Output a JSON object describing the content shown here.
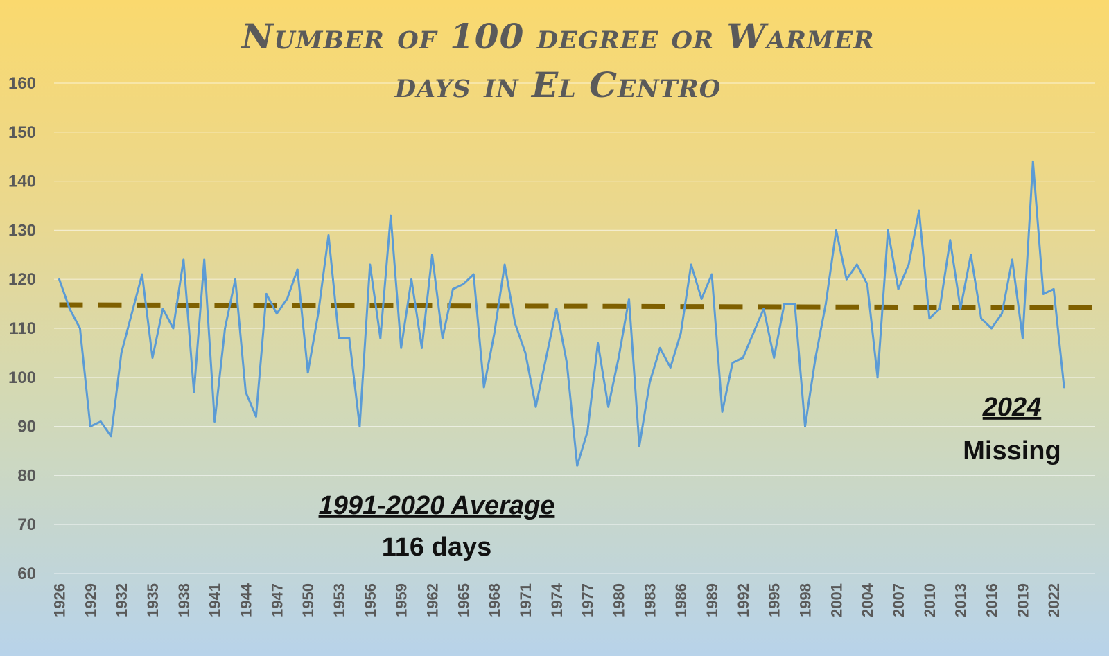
{
  "chart_data": {
    "type": "line",
    "title": [
      "Number of 100 degree or Warmer",
      "days in El Centro"
    ],
    "xlabel": "",
    "ylabel": "",
    "ylim": [
      60,
      160
    ],
    "yticks": [
      60,
      70,
      80,
      90,
      100,
      110,
      120,
      130,
      140,
      150,
      160
    ],
    "grid": true,
    "x": [
      1926,
      1927,
      1928,
      1929,
      1930,
      1931,
      1932,
      1933,
      1934,
      1935,
      1936,
      1937,
      1938,
      1939,
      1940,
      1941,
      1942,
      1943,
      1944,
      1945,
      1946,
      1947,
      1948,
      1949,
      1950,
      1951,
      1952,
      1953,
      1954,
      1955,
      1956,
      1957,
      1958,
      1959,
      1960,
      1961,
      1962,
      1963,
      1964,
      1965,
      1966,
      1967,
      1968,
      1969,
      1970,
      1971,
      1972,
      1973,
      1974,
      1975,
      1976,
      1977,
      1978,
      1979,
      1980,
      1981,
      1982,
      1983,
      1984,
      1985,
      1986,
      1987,
      1988,
      1989,
      1990,
      1991,
      1992,
      1993,
      1994,
      1995,
      1996,
      1997,
      1998,
      1999,
      2000,
      2001,
      2002,
      2003,
      2004,
      2005,
      2006,
      2007,
      2008,
      2009,
      2010,
      2011,
      2012,
      2013,
      2014,
      2015,
      2016,
      2017,
      2018,
      2019,
      2020,
      2021,
      2022,
      2023
    ],
    "xtick_labels": [
      "1926",
      "1929",
      "1932",
      "1935",
      "1938",
      "1941",
      "1944",
      "1947",
      "1950",
      "1953",
      "1956",
      "1959",
      "1962",
      "1965",
      "1968",
      "1971",
      "1974",
      "1977",
      "1980",
      "1983",
      "1986",
      "1989",
      "1992",
      "1995",
      "1998",
      "2001",
      "2004",
      "2007",
      "2010",
      "2013",
      "2016",
      "2019",
      "2022"
    ],
    "series": [
      {
        "color": "#5b9bd5",
        "values": [
          120,
          114,
          110,
          90,
          91,
          88,
          105,
          113,
          121,
          104,
          114,
          110,
          124,
          97,
          124,
          91,
          110,
          120,
          97,
          92,
          117,
          113,
          116,
          122,
          101,
          113,
          129,
          108,
          108,
          90,
          123,
          108,
          133,
          106,
          120,
          106,
          125,
          108,
          118,
          119,
          121,
          98,
          109,
          123,
          111,
          105,
          94,
          104,
          114,
          103,
          82,
          89,
          107,
          94,
          104,
          116,
          86,
          99,
          106,
          102,
          109,
          123,
          116,
          121,
          93,
          103,
          104,
          109,
          114,
          104,
          115,
          115,
          90,
          104,
          115,
          130,
          120,
          123,
          119,
          100,
          130,
          118,
          123,
          134,
          112,
          114,
          128,
          114,
          125,
          112,
          110,
          113,
          124,
          108,
          144,
          117,
          118,
          98
        ]
      }
    ],
    "average_line": {
      "y_start": 114.8,
      "y_end": 114.2,
      "x_start": 1926,
      "x_end": 2026,
      "color": "#7f6000"
    },
    "annotations": [
      {
        "heading": "1991-2020 Average",
        "text": "116 days"
      },
      {
        "heading": "2024",
        "text": "Missing"
      }
    ]
  }
}
